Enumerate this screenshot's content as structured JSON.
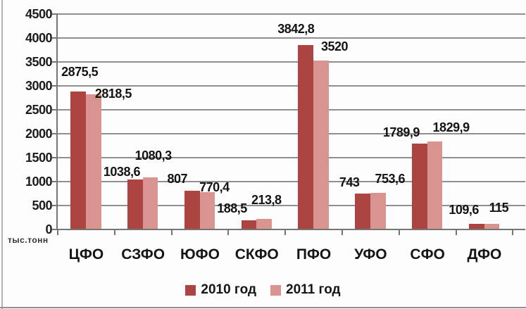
{
  "chart_data": {
    "type": "bar",
    "title": "",
    "ylabel": "тыс.тонн",
    "xlabel": "",
    "grid": true,
    "legend_position": "bottom",
    "ylim": [
      0,
      4500
    ],
    "ytick_step": 500,
    "yticks": [
      "4500",
      "4000",
      "3500",
      "3000",
      "2500",
      "2000",
      "1500",
      "1000",
      "500",
      "0"
    ],
    "categories": [
      "ЦФО",
      "СЗФО",
      "ЮФО",
      "СКФО",
      "ПФО",
      "УФО",
      "СФО",
      "ДФО"
    ],
    "series": [
      {
        "name": "2010 год",
        "color": "#AC4541",
        "values": [
          2875.5,
          1038.6,
          807,
          188.5,
          3842.8,
          743,
          1789.9,
          109.6
        ],
        "labels": [
          "2875,5",
          "1038,6",
          "807",
          "188,5",
          "3842,8",
          "743",
          "1789,9",
          "109,6"
        ]
      },
      {
        "name": "2011 год",
        "color": "#D9948F",
        "values": [
          2818.5,
          1080.3,
          770.4,
          213.8,
          3520,
          753.6,
          1829.9,
          115
        ],
        "labels": [
          "2818,5",
          "1080,3",
          "770,4",
          "213,8",
          "3520",
          "753,6",
          "1829,9",
          "115"
        ]
      }
    ],
    "label_offsets": [
      [
        [
          2,
          17
        ],
        [
          28,
          -10
        ]
      ],
      [
        [
          -19,
          0
        ],
        [
          4,
          20
        ]
      ],
      [
        [
          -21,
          6
        ],
        [
          10,
          -4
        ]
      ],
      [
        [
          -24,
          6
        ],
        [
          3,
          16
        ]
      ],
      [
        [
          -14,
          12
        ],
        [
          19,
          9
        ]
      ],
      [
        [
          -19,
          5
        ],
        [
          17,
          9
        ]
      ],
      [
        [
          -26,
          5
        ],
        [
          23,
          9
        ]
      ],
      [
        [
          -18,
          9
        ],
        [
          10,
          12
        ]
      ]
    ]
  }
}
